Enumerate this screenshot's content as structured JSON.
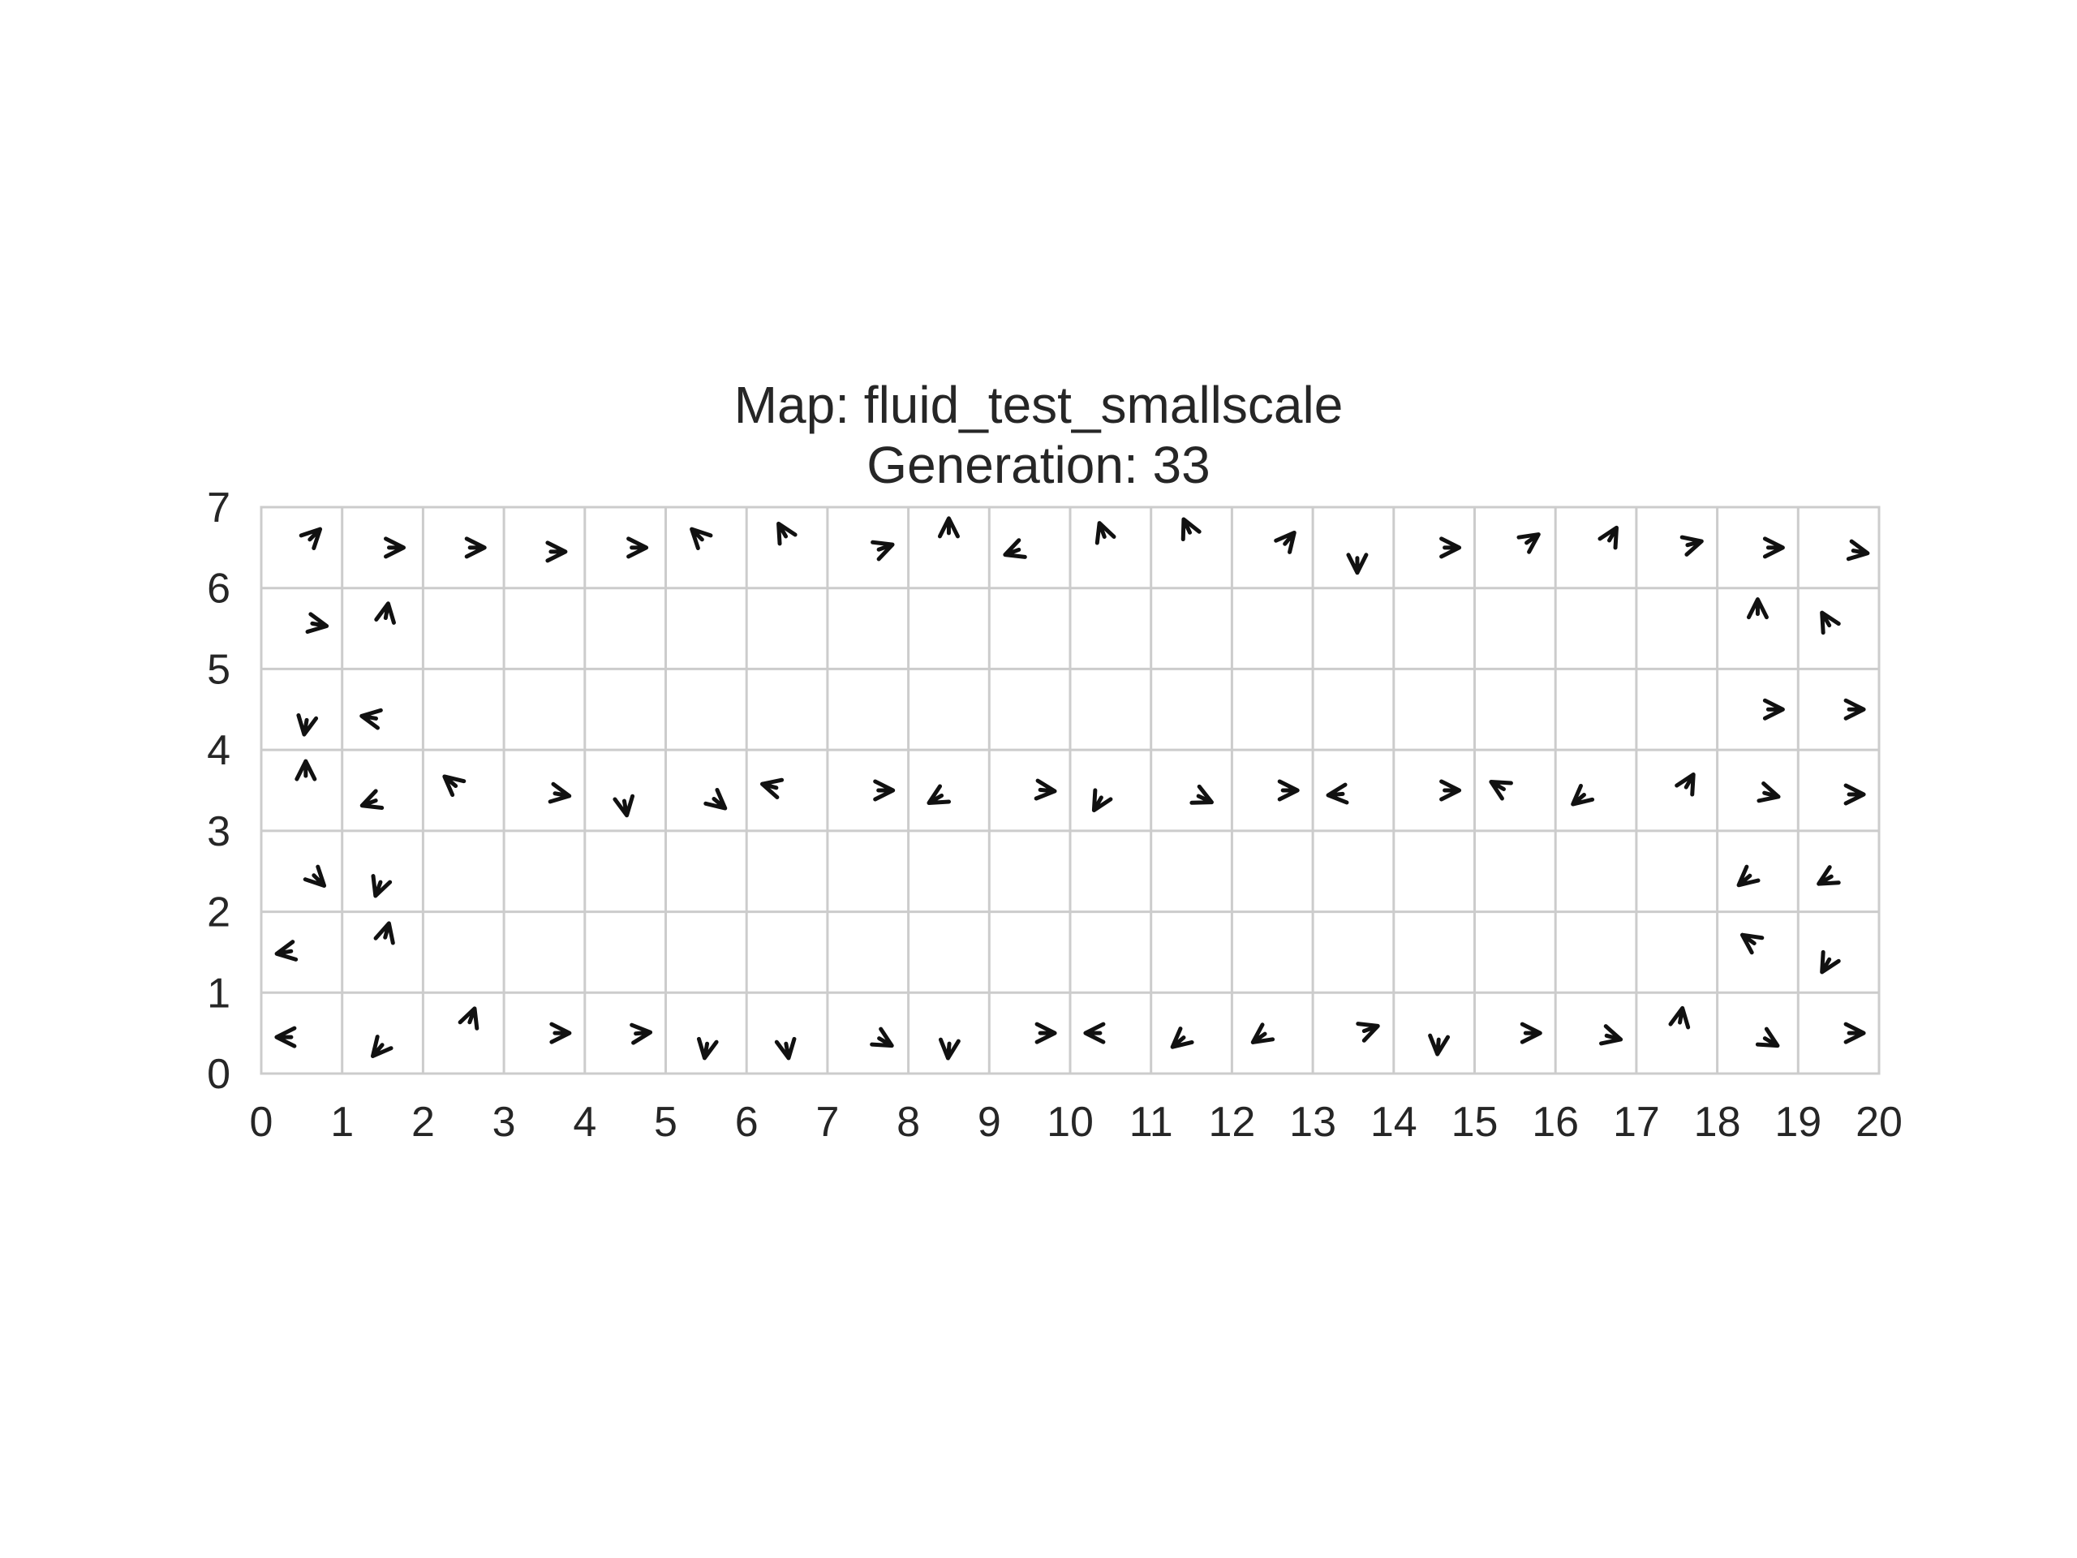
{
  "chart_data": {
    "type": "scatter",
    "title": "Map: fluid_test_smallscale",
    "subtitle": "Generation: 33",
    "xlabel": "",
    "ylabel": "",
    "xlim": [
      0,
      20
    ],
    "ylim": [
      0,
      7
    ],
    "xticks": [
      "0",
      "1",
      "2",
      "3",
      "4",
      "5",
      "6",
      "7",
      "8",
      "9",
      "10",
      "11",
      "12",
      "13",
      "14",
      "15",
      "16",
      "17",
      "18",
      "19",
      "20"
    ],
    "yticks": [
      "0",
      "1",
      "2",
      "3",
      "4",
      "5",
      "6",
      "7"
    ],
    "grid": true,
    "marker": "arrowhead",
    "points": [
      {
        "x": 0.65,
        "y": 6.65,
        "dir": 45
      },
      {
        "x": 1.65,
        "y": 6.5,
        "dir": 0
      },
      {
        "x": 2.65,
        "y": 6.5,
        "dir": 0
      },
      {
        "x": 3.65,
        "y": 6.45,
        "dir": 0
      },
      {
        "x": 4.65,
        "y": 6.5,
        "dir": 0
      },
      {
        "x": 5.4,
        "y": 6.65,
        "dir": 135
      },
      {
        "x": 6.45,
        "y": 6.7,
        "dir": 120
      },
      {
        "x": 7.7,
        "y": 6.5,
        "dir": 20
      },
      {
        "x": 8.5,
        "y": 6.75,
        "dir": 90
      },
      {
        "x": 9.3,
        "y": 6.45,
        "dir": 200
      },
      {
        "x": 10.4,
        "y": 6.7,
        "dir": 110
      },
      {
        "x": 11.45,
        "y": 6.75,
        "dir": 115
      },
      {
        "x": 12.7,
        "y": 6.6,
        "dir": 50
      },
      {
        "x": 13.55,
        "y": 6.3,
        "dir": 270
      },
      {
        "x": 14.7,
        "y": 6.5,
        "dir": 0
      },
      {
        "x": 15.7,
        "y": 6.6,
        "dir": 35
      },
      {
        "x": 16.7,
        "y": 6.65,
        "dir": 60
      },
      {
        "x": 17.7,
        "y": 6.55,
        "dir": 15
      },
      {
        "x": 18.7,
        "y": 6.5,
        "dir": 0
      },
      {
        "x": 19.75,
        "y": 6.45,
        "dir": -10
      },
      {
        "x": 0.7,
        "y": 5.55,
        "dir": -10
      },
      {
        "x": 1.55,
        "y": 5.7,
        "dir": 80
      },
      {
        "x": 18.5,
        "y": 5.75,
        "dir": 90
      },
      {
        "x": 19.35,
        "y": 5.6,
        "dir": 120
      },
      {
        "x": 0.55,
        "y": 4.3,
        "dir": 260
      },
      {
        "x": 1.35,
        "y": 4.4,
        "dir": 170
      },
      {
        "x": 18.7,
        "y": 4.5,
        "dir": 0
      },
      {
        "x": 19.7,
        "y": 4.5,
        "dir": 0
      },
      {
        "x": 0.55,
        "y": 3.75,
        "dir": 90
      },
      {
        "x": 1.35,
        "y": 3.35,
        "dir": 200
      },
      {
        "x": 2.35,
        "y": 3.6,
        "dir": 140
      },
      {
        "x": 3.7,
        "y": 3.45,
        "dir": -10
      },
      {
        "x": 4.5,
        "y": 3.3,
        "dir": 280
      },
      {
        "x": 5.65,
        "y": 3.35,
        "dir": -40
      },
      {
        "x": 6.3,
        "y": 3.55,
        "dir": 165
      },
      {
        "x": 7.7,
        "y": 3.5,
        "dir": 0
      },
      {
        "x": 8.35,
        "y": 3.4,
        "dir": 210
      },
      {
        "x": 9.7,
        "y": 3.5,
        "dir": -5
      },
      {
        "x": 10.35,
        "y": 3.35,
        "dir": 240
      },
      {
        "x": 11.65,
        "y": 3.4,
        "dir": -25
      },
      {
        "x": 12.7,
        "y": 3.5,
        "dir": 0
      },
      {
        "x": 13.3,
        "y": 3.45,
        "dir": 185
      },
      {
        "x": 14.7,
        "y": 3.5,
        "dir": 0
      },
      {
        "x": 15.3,
        "y": 3.55,
        "dir": 150
      },
      {
        "x": 16.3,
        "y": 3.4,
        "dir": 220
      },
      {
        "x": 17.65,
        "y": 3.6,
        "dir": 60
      },
      {
        "x": 18.65,
        "y": 3.45,
        "dir": -15
      },
      {
        "x": 19.7,
        "y": 3.45,
        "dir": 0
      },
      {
        "x": 0.7,
        "y": 2.4,
        "dir": -45
      },
      {
        "x": 1.45,
        "y": 2.3,
        "dir": 250
      },
      {
        "x": 18.35,
        "y": 2.4,
        "dir": 220
      },
      {
        "x": 19.35,
        "y": 2.4,
        "dir": 210
      },
      {
        "x": 0.3,
        "y": 1.5,
        "dir": 190
      },
      {
        "x": 1.55,
        "y": 1.75,
        "dir": 75
      },
      {
        "x": 18.4,
        "y": 1.65,
        "dir": 145
      },
      {
        "x": 19.35,
        "y": 1.35,
        "dir": 240
      },
      {
        "x": 0.3,
        "y": 0.45,
        "dir": 180
      },
      {
        "x": 1.45,
        "y": 0.3,
        "dir": 230
      },
      {
        "x": 2.6,
        "y": 0.7,
        "dir": 70
      },
      {
        "x": 3.7,
        "y": 0.5,
        "dir": 0
      },
      {
        "x": 4.7,
        "y": 0.5,
        "dir": 5
      },
      {
        "x": 5.5,
        "y": 0.3,
        "dir": 260
      },
      {
        "x": 6.5,
        "y": 0.3,
        "dir": 280
      },
      {
        "x": 7.7,
        "y": 0.4,
        "dir": -30
      },
      {
        "x": 8.5,
        "y": 0.3,
        "dir": 265
      },
      {
        "x": 9.7,
        "y": 0.5,
        "dir": 0
      },
      {
        "x": 10.3,
        "y": 0.5,
        "dir": 180
      },
      {
        "x": 11.35,
        "y": 0.4,
        "dir": 220
      },
      {
        "x": 12.35,
        "y": 0.45,
        "dir": 215
      },
      {
        "x": 13.7,
        "y": 0.55,
        "dir": 20
      },
      {
        "x": 14.55,
        "y": 0.35,
        "dir": 265
      },
      {
        "x": 15.7,
        "y": 0.5,
        "dir": 0
      },
      {
        "x": 16.7,
        "y": 0.45,
        "dir": -15
      },
      {
        "x": 17.55,
        "y": 0.7,
        "dir": 80
      },
      {
        "x": 18.65,
        "y": 0.4,
        "dir": -30
      },
      {
        "x": 19.7,
        "y": 0.5,
        "dir": 0
      }
    ]
  }
}
